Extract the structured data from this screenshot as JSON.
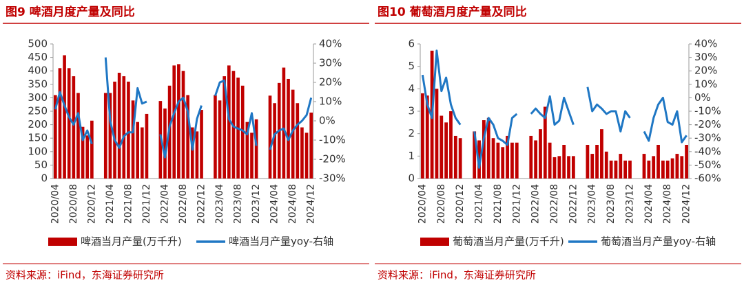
{
  "chart_data": [
    {
      "type": "bar",
      "title": "图9 啤酒月度产量及同比",
      "source": "资料来源：iFind，东海证券研究所",
      "categories": [
        "2020/04",
        null,
        null,
        null,
        "2020/08",
        null,
        null,
        null,
        "2020/12",
        null,
        null,
        null,
        "2021/04",
        null,
        null,
        null,
        "2021/08",
        null,
        null,
        null,
        "2021/12",
        null,
        null,
        null,
        "2022/04",
        null,
        null,
        null,
        "2022/08",
        null,
        null,
        null,
        "2022/12",
        null,
        null,
        null,
        "2023/04",
        null,
        null,
        null,
        "2023/08",
        null,
        null,
        null,
        "2023/12",
        null,
        null,
        null,
        "2024/04",
        null,
        null,
        null,
        "2024/08",
        null,
        null,
        null,
        "2024/12"
      ],
      "series": [
        {
          "name": "啤酒当月产量(万千升)",
          "type": "bar",
          "color": "#c00000",
          "axis": "y",
          "values": [
            310,
            410,
            458,
            410,
            380,
            318,
            192,
            160,
            215,
            null,
            null,
            318,
            318,
            360,
            393,
            380,
            360,
            290,
            210,
            190,
            240,
            null,
            null,
            288,
            260,
            345,
            420,
            425,
            400,
            310,
            190,
            175,
            255,
            null,
            null,
            310,
            290,
            380,
            420,
            400,
            375,
            345,
            210,
            170,
            220,
            null,
            null,
            308,
            280,
            355,
            412,
            370,
            330,
            280,
            190,
            170,
            245
          ]
        },
        {
          "name": "啤酒当月产量yoy-右轴",
          "type": "line",
          "color": "#1f77c4",
          "axis": "y2",
          "values": [
            6,
            15,
            8,
            2,
            -2,
            4,
            -10,
            -5,
            -12,
            null,
            null,
            33,
            0,
            -10,
            -14,
            -8,
            -6,
            -6,
            17,
            9,
            10,
            null,
            null,
            -7,
            -19,
            -3,
            4,
            10,
            12,
            5,
            -15,
            1,
            8,
            null,
            null,
            13,
            20,
            21,
            1,
            -3,
            -4,
            -5,
            -7,
            4,
            -13,
            null,
            null,
            -15,
            -7,
            -5,
            -4,
            -10,
            -5,
            -2,
            0,
            3,
            12
          ]
        }
      ],
      "ylim": [
        0,
        500
      ],
      "yticks": [
        0,
        50,
        100,
        150,
        200,
        250,
        300,
        350,
        400,
        450,
        500
      ],
      "y2lim": [
        -30,
        40
      ],
      "y2ticks": [
        {
          "value": -30,
          "label": "-30%"
        },
        {
          "value": -20,
          "label": "-20%"
        },
        {
          "value": -10,
          "label": "-10%"
        },
        {
          "value": 0,
          "label": "0%"
        },
        {
          "value": 10,
          "label": "10%"
        },
        {
          "value": 20,
          "label": "20%"
        },
        {
          "value": 30,
          "label": "30%"
        },
        {
          "value": 40,
          "label": "40%"
        }
      ]
    },
    {
      "type": "bar",
      "title": "图10 葡萄酒月度产量及同比",
      "source": "资料来源：iFind，东海证券研究所",
      "categories": [
        "2020/04",
        null,
        null,
        null,
        "2020/08",
        null,
        null,
        null,
        "2020/12",
        null,
        null,
        null,
        "2021/04",
        null,
        null,
        null,
        "2021/08",
        null,
        null,
        null,
        "2021/12",
        null,
        null,
        null,
        "2022/04",
        null,
        null,
        null,
        "2022/08",
        null,
        null,
        null,
        "2022/12",
        null,
        null,
        null,
        "2023/04",
        null,
        null,
        null,
        "2023/08",
        null,
        null,
        null,
        "2023/12",
        null,
        null,
        null,
        "2024/04",
        null,
        null,
        null,
        "2024/08",
        null,
        null,
        null,
        "2024/12"
      ],
      "series": [
        {
          "name": "葡萄酒当月产量(万千升)",
          "type": "bar",
          "color": "#c00000",
          "axis": "y",
          "values": [
            3.8,
            3.7,
            5.7,
            4.0,
            2.8,
            2.5,
            3.0,
            1.9,
            1.8,
            null,
            null,
            2.1,
            1.7,
            2.6,
            2.7,
            1.8,
            1.6,
            1.4,
            1.9,
            1.6,
            1.6,
            null,
            null,
            1.9,
            1.7,
            2.2,
            3.2,
            1.6,
            0.95,
            1.0,
            1.5,
            1.0,
            1.0,
            null,
            null,
            1.5,
            1.1,
            1.5,
            2.2,
            1.2,
            0.8,
            0.8,
            1.1,
            0.8,
            0.8,
            null,
            null,
            1.1,
            0.8,
            1.0,
            1.5,
            0.8,
            0.8,
            0.9,
            1.1,
            1.0,
            1.5
          ]
        },
        {
          "name": "葡萄酒当月产量yoy-右轴",
          "type": "line",
          "color": "#1f77c4",
          "axis": "y2",
          "values": [
            17,
            -5,
            -15,
            35,
            5,
            15,
            -5,
            -15,
            -20,
            null,
            null,
            -25,
            -52,
            -30,
            -15,
            -20,
            -30,
            -32,
            -35,
            -15,
            -12,
            null,
            null,
            -12,
            -8,
            -12,
            -15,
            1,
            -20,
            -17,
            0,
            -10,
            -20,
            null,
            null,
            8,
            -10,
            -5,
            -8,
            -12,
            -10,
            -10,
            -25,
            -10,
            -15,
            null,
            null,
            -25,
            -32,
            -15,
            -5,
            0,
            -18,
            -20,
            -10,
            -33,
            -28
          ]
        }
      ],
      "ylim": [
        0,
        6
      ],
      "yticks": [
        0,
        1,
        2,
        3,
        4,
        5,
        6
      ],
      "y2lim": [
        -60,
        40
      ],
      "y2ticks": [
        {
          "value": -60,
          "label": "-60%"
        },
        {
          "value": -50,
          "label": "-50%"
        },
        {
          "value": -40,
          "label": "-40%"
        },
        {
          "value": -30,
          "label": "-30%"
        },
        {
          "value": -20,
          "label": "-20%"
        },
        {
          "value": -10,
          "label": "-10%"
        },
        {
          "value": 0,
          "label": "0%"
        },
        {
          "value": 10,
          "label": "10%"
        },
        {
          "value": 20,
          "label": "20%"
        },
        {
          "value": 30,
          "label": "30%"
        },
        {
          "value": 40,
          "label": "40%"
        }
      ]
    }
  ]
}
